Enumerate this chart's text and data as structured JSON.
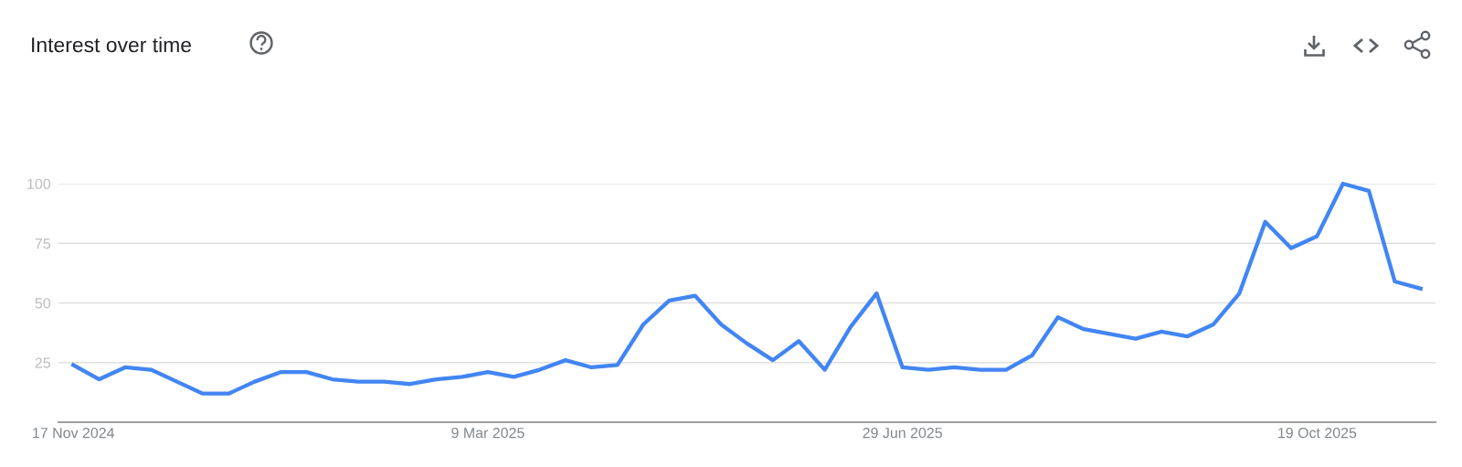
{
  "chart_data": {
    "type": "line",
    "title": "Interest over time",
    "x": [
      "2024-11-17",
      "2024-11-24",
      "2024-12-01",
      "2024-12-08",
      "2024-12-15",
      "2024-12-22",
      "2024-12-29",
      "2025-01-05",
      "2025-01-12",
      "2025-01-19",
      "2025-01-26",
      "2025-02-02",
      "2025-02-09",
      "2025-02-16",
      "2025-02-23",
      "2025-03-02",
      "2025-03-09",
      "2025-03-16",
      "2025-03-23",
      "2025-03-30",
      "2025-04-06",
      "2025-04-13",
      "2025-04-20",
      "2025-04-27",
      "2025-05-04",
      "2025-05-11",
      "2025-05-18",
      "2025-05-25",
      "2025-06-01",
      "2025-06-08",
      "2025-06-15",
      "2025-06-22",
      "2025-06-29",
      "2025-07-06",
      "2025-07-13",
      "2025-07-20",
      "2025-07-27",
      "2025-08-03",
      "2025-08-10",
      "2025-08-17",
      "2025-08-24",
      "2025-08-31",
      "2025-09-07",
      "2025-09-14",
      "2025-09-21",
      "2025-09-28",
      "2025-10-05",
      "2025-10-12",
      "2025-10-19",
      "2025-10-26",
      "2025-11-02",
      "2025-11-09",
      "2025-11-16"
    ],
    "series": [
      {
        "color": "#4285f4",
        "values": [
          24,
          18,
          23,
          22,
          17,
          12,
          12,
          17,
          21,
          21,
          18,
          17,
          17,
          16,
          18,
          19,
          21,
          19,
          22,
          26,
          23,
          24,
          41,
          51,
          53,
          41,
          33,
          26,
          34,
          22,
          40,
          54,
          23,
          22,
          23,
          22,
          22,
          28,
          44,
          39,
          37,
          35,
          38,
          36,
          41,
          54,
          84,
          73,
          78,
          100,
          97,
          59,
          56
        ]
      }
    ],
    "xlim": [
      "2024-11-13",
      "2025-11-20"
    ],
    "xticks": [
      {
        "value": "2024-11-17",
        "label": "17 Nov 2024"
      },
      {
        "value": "2025-03-09",
        "label": "9 Mar 2025"
      },
      {
        "value": "2025-06-29",
        "label": "29 Jun 2025"
      },
      {
        "value": "2025-10-19",
        "label": "19 Oct 2025"
      }
    ],
    "ylim": [
      0,
      100
    ],
    "yticks": [
      25,
      50,
      75,
      100
    ],
    "grid": "y",
    "marker": "none",
    "line_style": "solid"
  }
}
